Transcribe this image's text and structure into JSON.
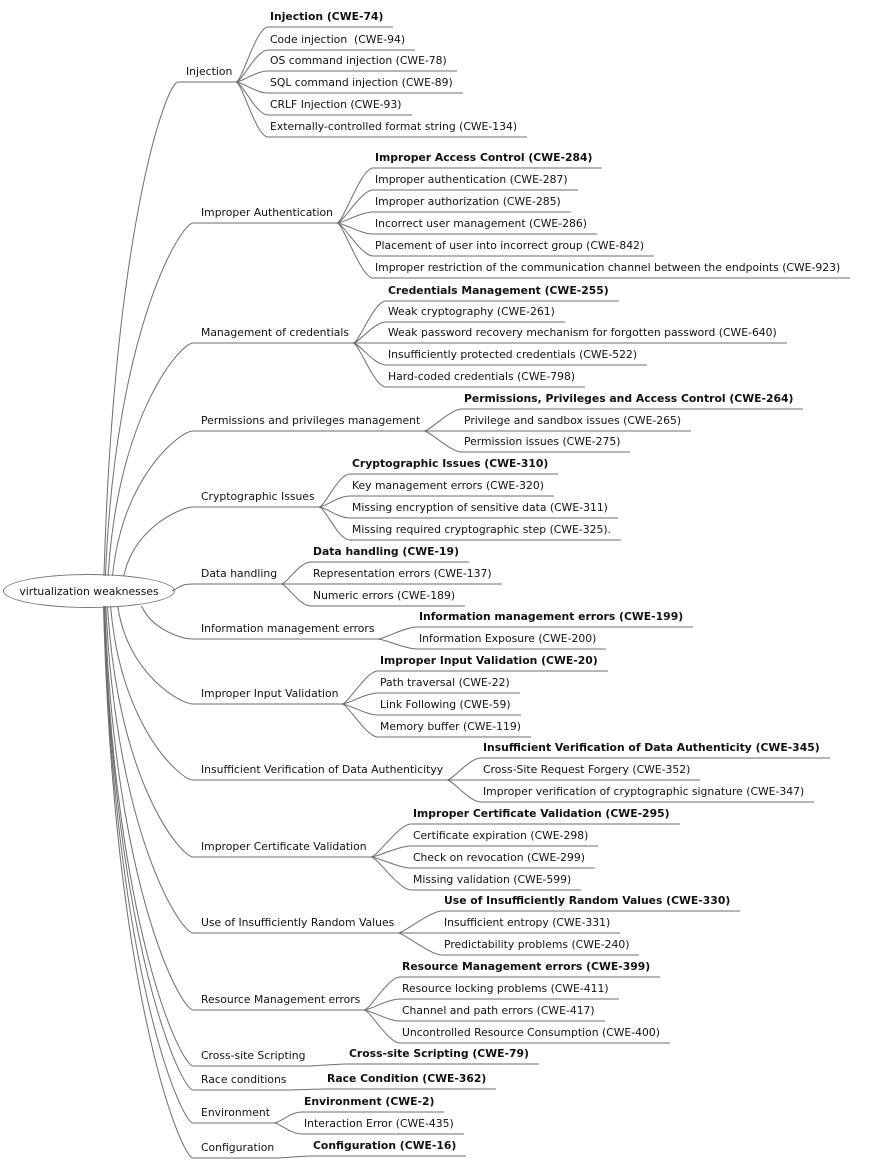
{
  "root": "virtualization weaknesses",
  "line_color": "#6e6e6e",
  "branches": [
    {
      "label": "Injection",
      "children": [
        {
          "label": "Injection (CWE-74)",
          "bold": true
        },
        {
          "label": "Code injection  (CWE-94)"
        },
        {
          "label": "OS command injection (CWE-78)"
        },
        {
          "label": "SQL command injection (CWE-89)"
        },
        {
          "label": "CRLF Injection (CWE-93)"
        },
        {
          "label": "Externally-controlled format string (CWE-134)"
        }
      ]
    },
    {
      "label": "Improper Authentication",
      "children": [
        {
          "label": "Improper Access Control (CWE-284)",
          "bold": true
        },
        {
          "label": "Improper authentication (CWE-287)"
        },
        {
          "label": "Improper authorization (CWE-285)"
        },
        {
          "label": "Incorrect user management (CWE-286)"
        },
        {
          "label": "Placement of user into incorrect group (CWE-842)"
        },
        {
          "label": "Improper restriction of the communication channel between the endpoints (CWE-923)"
        }
      ]
    },
    {
      "label": "Management of credentials",
      "children": [
        {
          "label": "Credentials Management (CWE-255)",
          "bold": true
        },
        {
          "label": "Weak cryptography (CWE-261)"
        },
        {
          "label": "Weak password recovery mechanism for forgotten password (CWE-640)"
        },
        {
          "label": "Insufficiently protected credentials (CWE-522)"
        },
        {
          "label": "Hard-coded credentials (CWE-798)"
        }
      ]
    },
    {
      "label": "Permissions and privileges management",
      "children": [
        {
          "label": "Permissions, Privileges and Access Control (CWE-264)",
          "bold": true
        },
        {
          "label": "Privilege and sandbox issues (CWE-265)"
        },
        {
          "label": "Permission issues (CWE-275)"
        }
      ]
    },
    {
      "label": "Cryptographic Issues",
      "children": [
        {
          "label": "Cryptographic Issues (CWE-310)",
          "bold": true
        },
        {
          "label": "Key management errors (CWE-320)"
        },
        {
          "label": "Missing encryption of sensitive data (CWE-311)"
        },
        {
          "label": "Missing required cryptographic step (CWE-325)."
        }
      ]
    },
    {
      "label": "Data handling",
      "children": [
        {
          "label": "Data handling (CWE-19)",
          "bold": true
        },
        {
          "label": "Representation errors (CWE-137)"
        },
        {
          "label": "Numeric errors (CWE-189)"
        }
      ]
    },
    {
      "label": "Information management errors",
      "children": [
        {
          "label": "Information management errors (CWE-199)",
          "bold": true
        },
        {
          "label": "Information Exposure (CWE-200)"
        }
      ]
    },
    {
      "label": "Improper Input Validation",
      "children": [
        {
          "label": "Improper Input Validation (CWE-20)",
          "bold": true
        },
        {
          "label": "Path traversal (CWE-22)"
        },
        {
          "label": "Link Following (CWE-59)"
        },
        {
          "label": "Memory buffer (CWE-119)"
        }
      ]
    },
    {
      "label": "Insufficient Verification of Data Authenticityy",
      "children": [
        {
          "label": "Insufficient Verification of Data Authenticity (CWE-345)",
          "bold": true
        },
        {
          "label": "Cross-Site Request Forgery (CWE-352)"
        },
        {
          "label": "Improper verification of cryptographic signature (CWE-347)"
        }
      ]
    },
    {
      "label": "Improper Certificate Validation",
      "children": [
        {
          "label": "Improper Certificate Validation (CWE-295)",
          "bold": true
        },
        {
          "label": "Certificate expiration (CWE-298)"
        },
        {
          "label": "Check on revocation (CWE-299)"
        },
        {
          "label": "Missing validation (CWE-599)"
        }
      ]
    },
    {
      "label": "Use of Insufficiently Random Values",
      "children": [
        {
          "label": "Use of Insufficiently Random Values (CWE-330)",
          "bold": true
        },
        {
          "label": "Insufficient entropy (CWE-331)"
        },
        {
          "label": "Predictability problems (CWE-240)"
        }
      ]
    },
    {
      "label": "Resource Management errors",
      "children": [
        {
          "label": "Resource Management errors (CWE-399)",
          "bold": true
        },
        {
          "label": "Resource locking problems (CWE-411)"
        },
        {
          "label": "Channel and path errors (CWE-417)"
        },
        {
          "label": "Uncontrolled Resource Consumption (CWE-400)"
        }
      ]
    },
    {
      "label": "Cross-site Scripting",
      "children": [
        {
          "label": "Cross-site Scripting (CWE-79)",
          "bold": true
        }
      ]
    },
    {
      "label": "Race conditions",
      "children": [
        {
          "label": "Race Condition (CWE-362)",
          "bold": true
        }
      ]
    },
    {
      "label": "Environment",
      "children": [
        {
          "label": "Environment (CWE-2)",
          "bold": true
        },
        {
          "label": "Interaction Error (CWE-435)"
        }
      ]
    },
    {
      "label": "Configuration",
      "children": [
        {
          "label": "Configuration (CWE-16)",
          "bold": true
        }
      ]
    }
  ]
}
